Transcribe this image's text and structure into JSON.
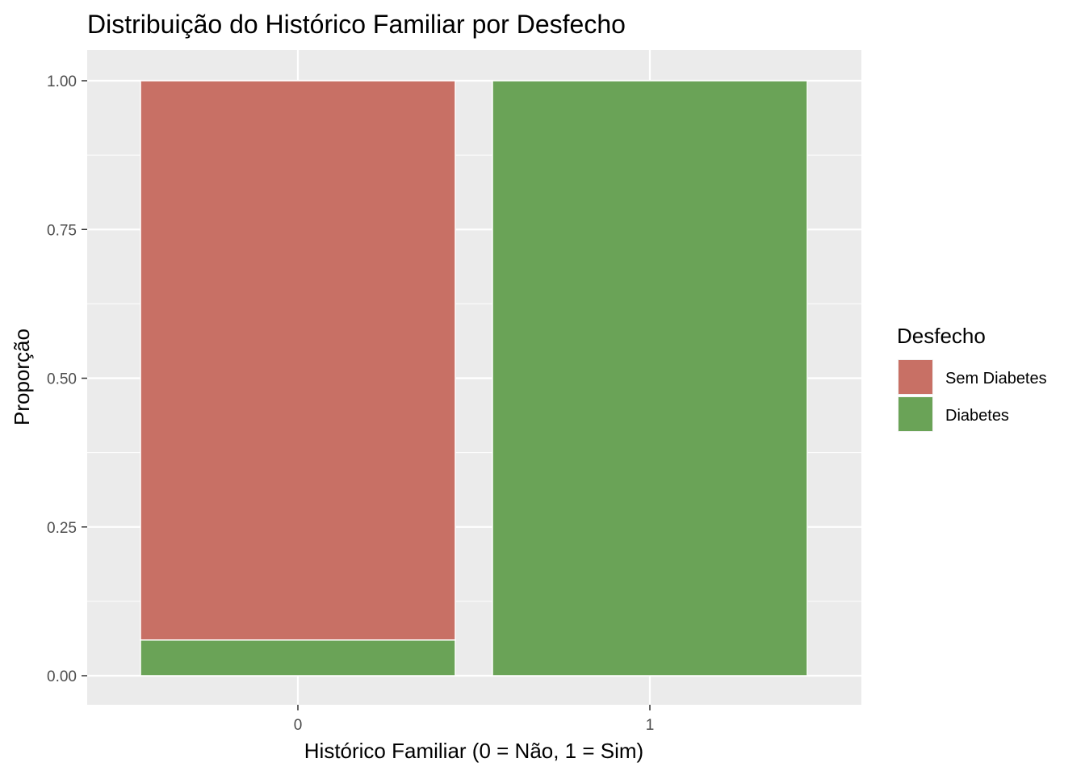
{
  "chart_data": {
    "type": "bar",
    "stacked": true,
    "position": "fill",
    "title": "Distribuição do Histórico Familiar por Desfecho",
    "xlabel": "Histórico Familiar (0 = Não, 1 = Sim)",
    "ylabel": "Proporção",
    "categories": [
      "0",
      "1"
    ],
    "ylim": [
      0,
      1
    ],
    "yticks": [
      "0.00",
      "0.25",
      "0.50",
      "0.75",
      "1.00"
    ],
    "series": [
      {
        "name": "Diabetes",
        "values": [
          0.06,
          1.0
        ],
        "color": "#6aa357"
      },
      {
        "name": "Sem Diabetes",
        "values": [
          0.94,
          0.0
        ],
        "color": "#c87065"
      }
    ],
    "legend": {
      "title": "Desfecho",
      "placement": "right",
      "entries": [
        {
          "label": "Sem Diabetes",
          "color": "#c87065"
        },
        {
          "label": "Diabetes",
          "color": "#6aa357"
        }
      ]
    },
    "grid": true,
    "panel_background": "#ebebeb",
    "grid_color": "#ffffff"
  }
}
